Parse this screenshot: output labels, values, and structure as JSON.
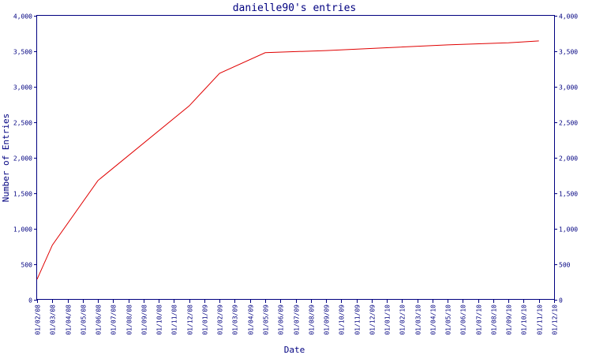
{
  "chart_data": {
    "type": "line",
    "title": "danielle90's entries",
    "xlabel": "Date",
    "ylabel": "Number of Entries",
    "ylim": [
      0,
      4000
    ],
    "y_ticks": [
      "0",
      "500",
      "1,000",
      "1,500",
      "2,000",
      "2,500",
      "3,000",
      "3,500",
      "4,000"
    ],
    "y_tick_values": [
      0,
      500,
      1000,
      1500,
      2000,
      2500,
      3000,
      3500,
      4000
    ],
    "x_ticks": [
      "01/02/08",
      "01/03/08",
      "01/04/08",
      "01/05/08",
      "01/06/08",
      "01/07/08",
      "01/08/08",
      "01/09/08",
      "01/10/08",
      "01/11/08",
      "01/12/08",
      "01/01/09",
      "01/02/09",
      "01/03/09",
      "01/04/09",
      "01/05/09",
      "01/06/09",
      "01/07/09",
      "01/08/09",
      "01/09/09",
      "01/10/09",
      "01/11/09",
      "01/12/09",
      "01/01/10",
      "01/02/10",
      "01/03/10",
      "01/04/10",
      "01/05/10",
      "01/06/10",
      "01/07/10",
      "01/08/10",
      "01/09/10",
      "01/10/10",
      "01/11/10",
      "01/12/10"
    ],
    "grid": false,
    "right_axis": true,
    "series_color": "#e00000",
    "axis_color": "#000080",
    "series": [
      {
        "x": [
          "01/02/08",
          "01/03/08",
          "01/06/08",
          "01/12/08",
          "01/02/09",
          "01/05/09",
          "01/09/09",
          "01/01/10",
          "01/05/10",
          "01/09/10",
          "01/11/10"
        ],
        "values": [
          290,
          770,
          1680,
          2730,
          3190,
          3480,
          3510,
          3550,
          3590,
          3620,
          3645
        ]
      }
    ]
  }
}
